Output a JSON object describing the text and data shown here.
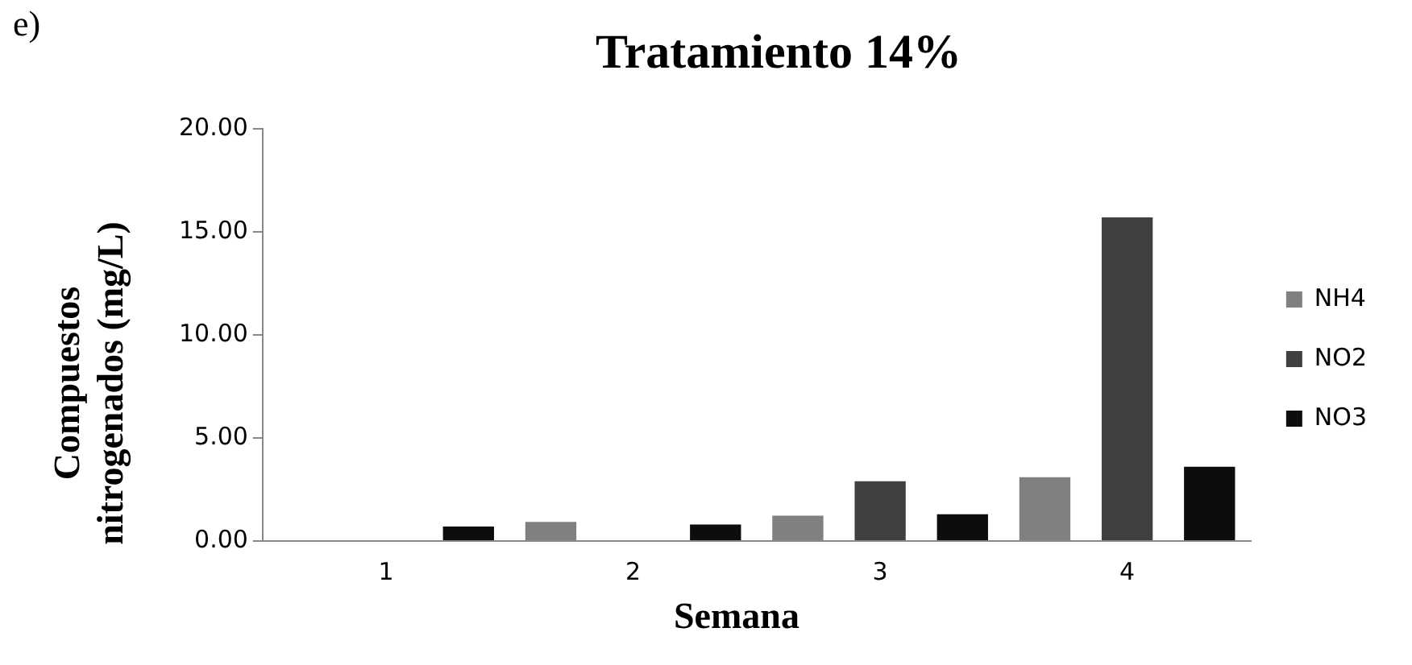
{
  "chart_data": {
    "type": "bar",
    "title": "Tratamiento 14%",
    "xlabel": "Semana",
    "ylabel": "Compuestos nitrogenados (mg/L)",
    "annotations": [
      "e)"
    ],
    "categories": [
      "1",
      "2",
      "3",
      "4"
    ],
    "series": [
      {
        "name": "NH4",
        "color": "#808080",
        "values": [
          0,
          0.93,
          1.23,
          3.1
        ]
      },
      {
        "name": "NO2",
        "color": "#404040",
        "values": [
          0,
          0,
          2.9,
          15.7
        ]
      },
      {
        "name": "NO3",
        "color": "#0d0d0d",
        "values": [
          0.7,
          0.8,
          1.3,
          3.6
        ]
      }
    ],
    "ylim": [
      0,
      20
    ],
    "yticks": [
      {
        "value": 0,
        "label": "0.00"
      },
      {
        "value": 5,
        "label": "5.00"
      },
      {
        "value": 10,
        "label": "10.00"
      },
      {
        "value": 15,
        "label": "15.00"
      },
      {
        "value": 20,
        "label": "20.00"
      }
    ],
    "grid": false,
    "legend": "right"
  }
}
